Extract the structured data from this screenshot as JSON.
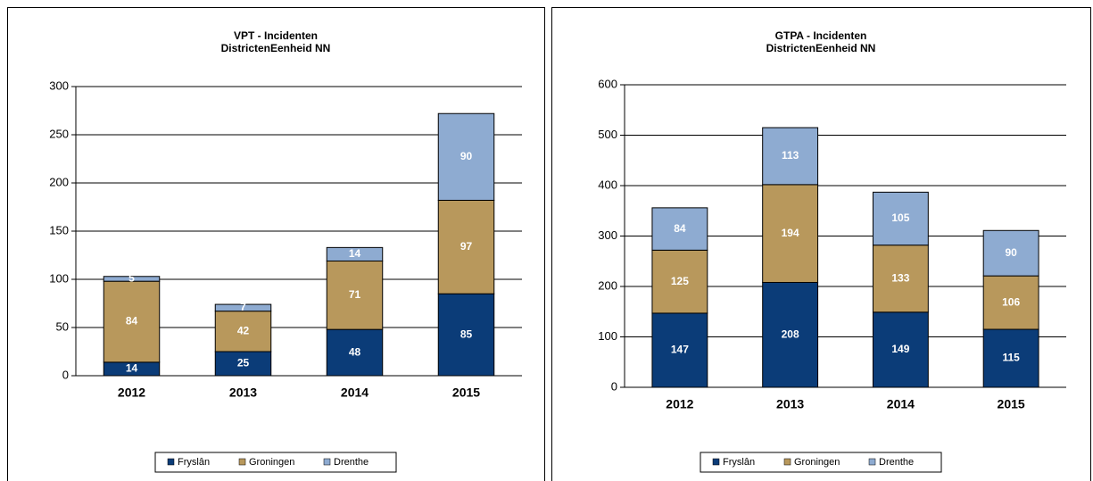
{
  "chart_data": [
    {
      "type": "stacked_bar",
      "title": "VPT - Incidenten",
      "subtitle": "DistrictenEenheid NN",
      "categories": [
        "2012",
        "2013",
        "2014",
        "2015"
      ],
      "series": [
        {
          "name": "Fryslân",
          "color": "#0b3c78",
          "values": [
            14,
            25,
            48,
            85
          ]
        },
        {
          "name": "Groningen",
          "color": "#b8985c",
          "values": [
            84,
            42,
            71,
            97
          ]
        },
        {
          "name": "Drenthe",
          "color": "#8eabd1",
          "values": [
            5,
            7,
            14,
            90
          ]
        }
      ],
      "ylim": [
        0,
        300
      ],
      "yticks": [
        0,
        50,
        100,
        150,
        200,
        250,
        300
      ],
      "grid": true,
      "legend": "bottom"
    },
    {
      "type": "stacked_bar",
      "title": "GTPA - Incidenten",
      "subtitle": "DistrictenEenheid NN",
      "categories": [
        "2012",
        "2013",
        "2014",
        "2015"
      ],
      "series": [
        {
          "name": "Fryslân",
          "color": "#0b3c78",
          "values": [
            147,
            208,
            149,
            115
          ]
        },
        {
          "name": "Groningen",
          "color": "#b8985c",
          "values": [
            125,
            194,
            133,
            106
          ]
        },
        {
          "name": "Drenthe",
          "color": "#8eabd1",
          "values": [
            84,
            113,
            105,
            90
          ]
        }
      ],
      "ylim": [
        0,
        600
      ],
      "yticks": [
        0,
        100,
        200,
        300,
        400,
        500,
        600
      ],
      "grid": true,
      "legend": "bottom"
    }
  ]
}
